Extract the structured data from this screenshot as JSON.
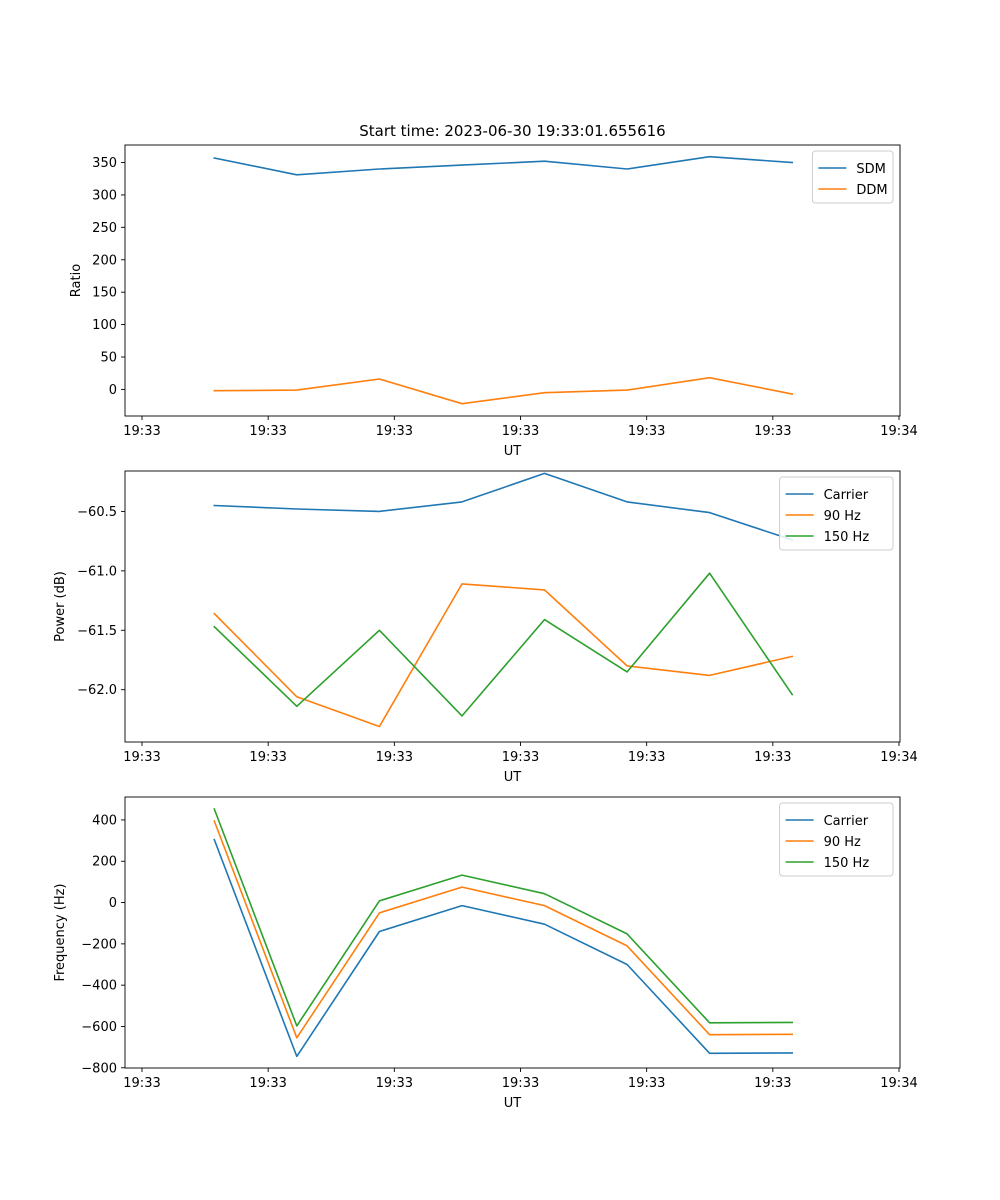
{
  "figure": {
    "title": "Start time: 2023-06-30 19:33:01.655616"
  },
  "chart_data": [
    {
      "type": "line",
      "title": "Start time: 2023-06-30 19:33:01.655616",
      "xlabel": "UT",
      "ylabel": "Ratio",
      "x_tick_labels": [
        "19:33",
        "19:33",
        "19:33",
        "19:33",
        "19:33",
        "19:33",
        "19:34"
      ],
      "x_range_seconds": [
        0.6,
        9.8
      ],
      "x_seconds": [
        1.66,
        2.64,
        3.62,
        4.6,
        5.58,
        6.56,
        7.54,
        8.52
      ],
      "ylim": [
        -41,
        377
      ],
      "y_ticks": [
        0,
        50,
        100,
        150,
        200,
        250,
        300,
        350
      ],
      "legend": "top-right",
      "grid": false,
      "series": [
        {
          "name": "SDM",
          "color": "#1f77b4",
          "values": [
            357,
            331,
            340,
            346,
            352,
            340,
            359,
            350
          ]
        },
        {
          "name": "DDM",
          "color": "#ff7f0e",
          "values": [
            -2,
            -1,
            16,
            -22,
            -5,
            -1,
            18,
            -7
          ]
        }
      ]
    },
    {
      "type": "line",
      "title": "",
      "xlabel": "UT",
      "ylabel": "Power (dB)",
      "x_tick_labels": [
        "19:33",
        "19:33",
        "19:33",
        "19:33",
        "19:33",
        "19:33",
        "19:34"
      ],
      "x_range_seconds": [
        0.6,
        9.8
      ],
      "x_seconds": [
        1.66,
        2.64,
        3.62,
        4.6,
        5.58,
        6.56,
        7.54,
        8.52
      ],
      "ylim": [
        -62.44,
        -60.16
      ],
      "y_ticks": [
        -62.0,
        -61.5,
        -61.0,
        -60.5
      ],
      "y_tick_labels": [
        "−62.0",
        "−61.5",
        "−61.0",
        "−60.5"
      ],
      "legend": "top-right",
      "grid": false,
      "series": [
        {
          "name": "Carrier",
          "color": "#1f77b4",
          "values": [
            -60.45,
            -60.48,
            -60.5,
            -60.42,
            -60.18,
            -60.42,
            -60.51,
            -60.74
          ]
        },
        {
          "name": "90 Hz",
          "color": "#ff7f0e",
          "values": [
            -61.36,
            -62.06,
            -62.31,
            -61.11,
            -61.16,
            -61.8,
            -61.88,
            -61.72
          ]
        },
        {
          "name": "150 Hz",
          "color": "#2ca02c",
          "values": [
            -61.47,
            -62.14,
            -61.5,
            -62.22,
            -61.41,
            -61.85,
            -61.02,
            -62.04
          ]
        }
      ]
    },
    {
      "type": "line",
      "title": "",
      "xlabel": "UT",
      "ylabel": "Frequency (Hz)",
      "x_tick_labels": [
        "19:33",
        "19:33",
        "19:33",
        "19:33",
        "19:33",
        "19:33",
        "19:34"
      ],
      "x_range_seconds": [
        0.6,
        9.8
      ],
      "x_seconds": [
        1.66,
        2.64,
        3.62,
        4.6,
        5.58,
        6.56,
        7.54,
        8.52
      ],
      "ylim": [
        -801,
        511
      ],
      "y_ticks": [
        -800,
        -600,
        -400,
        -200,
        0,
        200,
        400
      ],
      "y_tick_labels": [
        "−800",
        "−600",
        "−400",
        "−200",
        "0",
        "200",
        "400"
      ],
      "legend": "top-right",
      "grid": false,
      "series": [
        {
          "name": "Carrier",
          "color": "#1f77b4",
          "values": [
            305,
            -745,
            -140,
            -15,
            -105,
            -300,
            -730,
            -728
          ]
        },
        {
          "name": "90 Hz",
          "color": "#ff7f0e",
          "values": [
            395,
            -655,
            -50,
            75,
            -15,
            -210,
            -640,
            -638
          ]
        },
        {
          "name": "150 Hz",
          "color": "#2ca02c",
          "values": [
            453,
            -597,
            8,
            133,
            43,
            -152,
            -582,
            -580
          ]
        }
      ]
    }
  ]
}
